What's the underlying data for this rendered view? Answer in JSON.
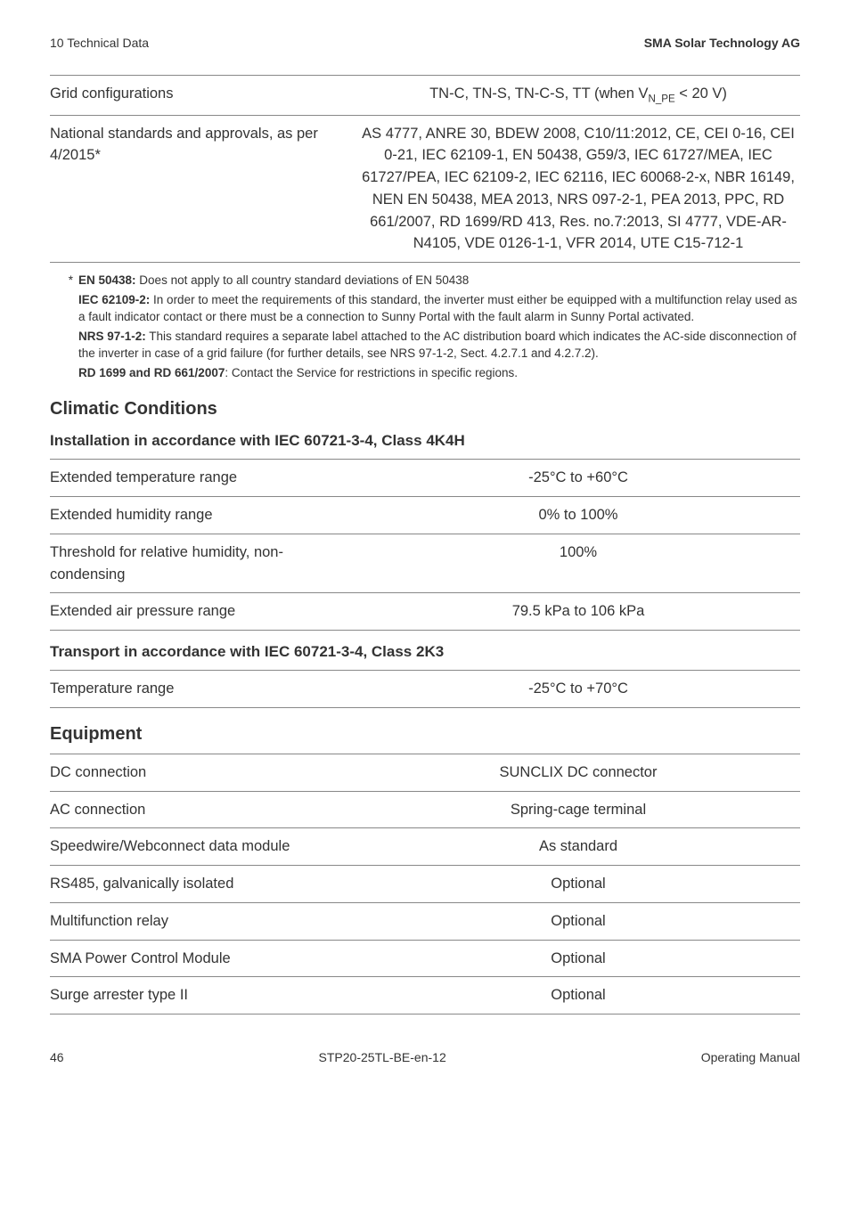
{
  "header": {
    "left": "10 Technical Data",
    "right": "SMA Solar Technology AG"
  },
  "top_table": {
    "rows": [
      {
        "label": "Grid configurations",
        "value_html": "TN-C, TN-S, TN-C-S, TT (when V<sub>N_PE</sub> < 20 V)"
      },
      {
        "label": "National standards and approvals, as per 4/2015*",
        "value_html": "AS 4777, ANRE 30, BDEW 2008, C10/11:2012, CE, CEI 0-16, CEI 0-21, IEC 62109-1, EN 50438, G59/3, IEC 61727/MEA, IEC 61727/PEA, IEC 62109-2, IEC 62116, IEC 60068-2-x, NBR 16149, NEN EN 50438, MEA 2013, NRS 097-2-1, PEA 2013, PPC, RD 661/2007, RD 1699/RD 413, Res. no.7:2013, SI 4777, VDE-AR-N4105, VDE 0126-1-1, VFR 2014, UTE C15-712-1"
      }
    ]
  },
  "footnote": {
    "mark": "*",
    "entries": [
      {
        "bold": "EN 50438:",
        "text": " Does not apply to all country standard deviations of EN 50438"
      },
      {
        "bold": "IEC 62109-2:",
        "text": " In order to meet the requirements of this standard, the inverter must either be equipped with a multifunction relay used as a fault indicator contact or there must be a connection to Sunny Portal with the fault alarm in Sunny Portal activated."
      },
      {
        "bold": "NRS 97-1-2:",
        "text": " This standard requires a separate label attached to the AC distribution board which indicates the AC-side disconnection of the inverter in case of a grid failure (for further details, see NRS 97-1-2, Sect. 4.2.7.1 and 4.2.7.2)."
      },
      {
        "bold": "RD 1699 and RD 661/2007",
        "text": ": Contact the Service for restrictions in specific regions."
      }
    ]
  },
  "climatic": {
    "title": "Climatic Conditions",
    "install": {
      "title": "Installation in accordance with IEC 60721-3-4, Class 4K4H",
      "rows": [
        {
          "label": "Extended temperature range",
          "value": "-25°C to +60°C"
        },
        {
          "label": "Extended humidity range",
          "value": "0% to 100%"
        },
        {
          "label": "Threshold for relative humidity, non-condensing",
          "value": "100%"
        },
        {
          "label": "Extended air pressure range",
          "value": "79.5 kPa to 106 kPa"
        }
      ]
    },
    "transport": {
      "title": "Transport in accordance with IEC 60721-3-4, Class 2K3",
      "rows": [
        {
          "label": "Temperature range",
          "value": "-25°C to +70°C"
        }
      ]
    }
  },
  "equipment": {
    "title": "Equipment",
    "rows": [
      {
        "label": "DC connection",
        "value": "SUNCLIX DC connector"
      },
      {
        "label": "AC connection",
        "value": "Spring-cage terminal"
      },
      {
        "label": "Speedwire/Webconnect data module",
        "value": "As standard"
      },
      {
        "label": "RS485, galvanically isolated",
        "value": "Optional"
      },
      {
        "label": "Multifunction relay",
        "value": "Optional"
      },
      {
        "label": "SMA Power Control Module",
        "value": "Optional"
      },
      {
        "label": "Surge arrester type II",
        "value": "Optional"
      }
    ]
  },
  "footer": {
    "page": "46",
    "doc": "STP20-25TL-BE-en-12",
    "right": "Operating Manual"
  }
}
